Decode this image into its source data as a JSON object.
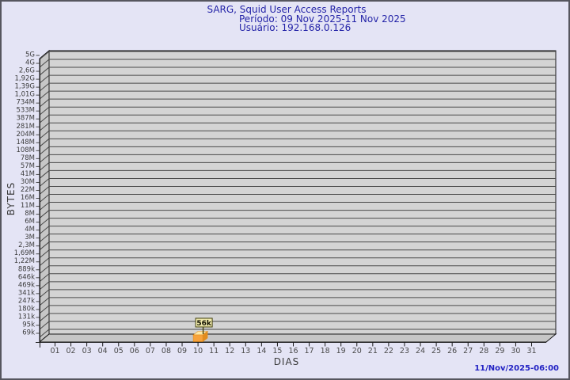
{
  "window": {
    "background_color": "#e4e4f5",
    "border_color": "#56565e"
  },
  "title": {
    "line1": "SARG, Squid User Access Reports",
    "line2": "Período: 09 Nov 2025-11 Nov 2025",
    "line3": "Usuário: 192.168.0.126",
    "color": "#2424a8"
  },
  "footer": {
    "timestamp": "11/Nov/2025-06:00",
    "color": "#2222c4"
  },
  "chart_data": {
    "type": "bar",
    "title": "SARG, Squid User Access Reports",
    "subtitle_period": "Período: 09 Nov 2025-11 Nov 2025",
    "subtitle_user": "Usuário: 192.168.0.126",
    "xlabel": "DIAS",
    "ylabel": "BYTES",
    "y_scale": "log",
    "grid": true,
    "legend_position": "none",
    "y_tick_labels": [
      "5G",
      "4G",
      "2,6G",
      "1,92G",
      "1,39G",
      "1,01G",
      "734M",
      "533M",
      "387M",
      "281M",
      "204M",
      "148M",
      "108M",
      "78M",
      "57M",
      "41M",
      "30M",
      "22M",
      "16M",
      "11M",
      "8M",
      "6M",
      "4M",
      "3M",
      "2,3M",
      "1,69M",
      "1,22M",
      "889k",
      "646k",
      "469k",
      "341k",
      "247k",
      "180k",
      "131k",
      "95k",
      "69k"
    ],
    "x_tick_labels": [
      "01",
      "02",
      "03",
      "04",
      "05",
      "06",
      "07",
      "08",
      "09",
      "10",
      "11",
      "12",
      "13",
      "14",
      "15",
      "16",
      "17",
      "18",
      "19",
      "20",
      "21",
      "22",
      "23",
      "24",
      "25",
      "26",
      "27",
      "28",
      "29",
      "30",
      "31"
    ],
    "series": [
      {
        "name": "192.168.0.126",
        "points": [
          {
            "day": "10",
            "value_bytes": 57344,
            "value_label": "56k"
          }
        ]
      }
    ],
    "colors": {
      "plot_bg": "#d4d4d4",
      "wall": "#c6c6c6",
      "gridline": "#4a4a4a",
      "frame": "#1a1a1a",
      "tick_text": "#3c3c3c",
      "day_text": "#4a4a4a",
      "bar_front": "#f7a23c",
      "bar_top": "#fde9a6",
      "bar_side": "#e18c1e",
      "note_bg": "#efe9ab",
      "note_border": "#454311",
      "note_text": "#111100"
    }
  }
}
